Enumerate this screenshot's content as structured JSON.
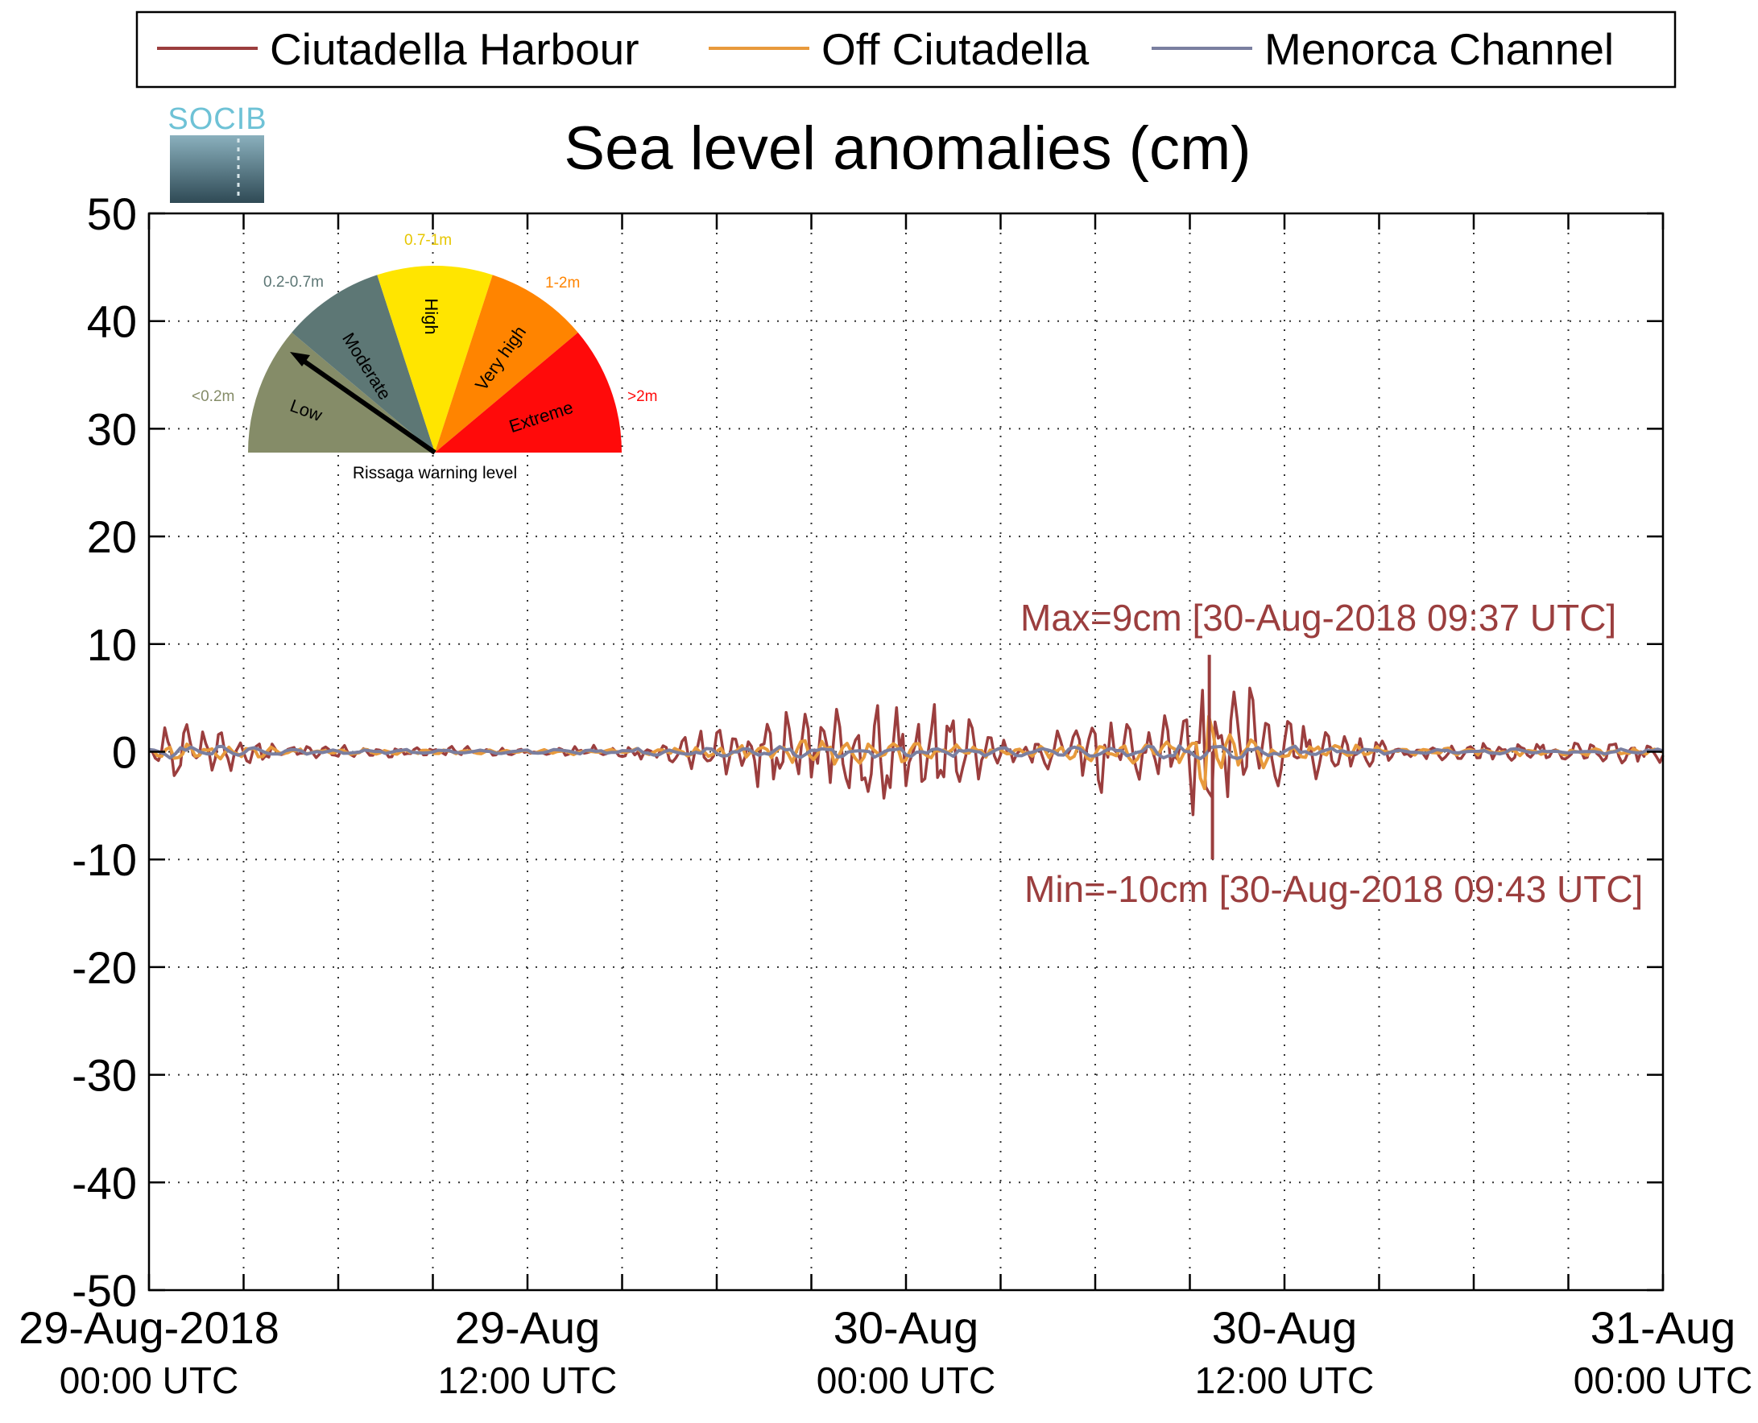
{
  "chart_data": {
    "type": "line",
    "title": "Sea level anomalies (cm)",
    "xlabel": "",
    "ylabel": "",
    "ylim": [
      -50,
      50
    ],
    "yticks": [
      50,
      40,
      30,
      20,
      10,
      0,
      -10,
      -20,
      -30,
      -40,
      -50
    ],
    "x_range": [
      "2018-08-29 00:00",
      "2018-08-31 00:00"
    ],
    "x_tick_labels": [
      {
        "x": "2018-08-29 00:00",
        "line1": "29-Aug-2018",
        "line2": "00:00 UTC"
      },
      {
        "x": "2018-08-29 12:00",
        "line1": "29-Aug",
        "line2": "12:00 UTC"
      },
      {
        "x": "2018-08-30 00:00",
        "line1": "30-Aug",
        "line2": "00:00 UTC"
      },
      {
        "x": "2018-08-30 12:00",
        "line1": "30-Aug",
        "line2": "12:00 UTC"
      },
      {
        "x": "2018-08-31 00:00",
        "line1": "31-Aug",
        "line2": "00:00 UTC"
      }
    ],
    "x_minor_ticks": [
      "2018-08-29 03:00",
      "2018-08-29 06:00",
      "2018-08-29 09:00",
      "2018-08-29 15:00",
      "2018-08-29 18:00",
      "2018-08-29 21:00",
      "2018-08-30 03:00",
      "2018-08-30 06:00",
      "2018-08-30 09:00",
      "2018-08-30 15:00",
      "2018-08-30 18:00",
      "2018-08-30 21:00"
    ],
    "grid": true,
    "legend_position": "top",
    "series": [
      {
        "name": "Ciutadella Harbour",
        "color": "#9b3e3e",
        "envelope": [
          [
            "2018-08-29 00:00",
            0.5
          ],
          [
            "2018-08-29 00:30",
            4
          ],
          [
            "2018-08-29 01:00",
            3.5
          ],
          [
            "2018-08-29 02:00",
            2.5
          ],
          [
            "2018-08-29 04:00",
            0.8
          ],
          [
            "2018-08-29 06:00",
            0.6
          ],
          [
            "2018-08-29 08:00",
            0.6
          ],
          [
            "2018-08-29 12:00",
            0.4
          ],
          [
            "2018-08-29 16:00",
            0.8
          ],
          [
            "2018-08-29 18:00",
            2.5
          ],
          [
            "2018-08-29 19:00",
            3
          ],
          [
            "2018-08-29 21:00",
            6
          ],
          [
            "2018-08-29 23:00",
            5
          ],
          [
            "2018-08-30 01:00",
            5
          ],
          [
            "2018-08-30 03:00",
            1.5
          ],
          [
            "2018-08-30 04:00",
            1.5
          ],
          [
            "2018-08-30 06:00",
            4
          ],
          [
            "2018-08-30 07:00",
            4
          ],
          [
            "2018-08-30 08:00",
            3
          ],
          [
            "2018-08-30 09:30",
            7
          ],
          [
            "2018-08-30 10:00",
            6
          ],
          [
            "2018-08-30 11:00",
            8.5
          ],
          [
            "2018-08-30 12:00",
            5
          ],
          [
            "2018-08-30 13:30",
            2
          ],
          [
            "2018-08-30 16:00",
            1
          ],
          [
            "2018-08-30 20:00",
            0.9
          ],
          [
            "2018-08-31 00:00",
            1.2
          ]
        ]
      },
      {
        "name": "Off Ciutadella",
        "color": "#e89a3c",
        "envelope": [
          [
            "2018-08-29 00:00",
            0.3
          ],
          [
            "2018-08-29 01:00",
            1.2
          ],
          [
            "2018-08-29 04:00",
            0.4
          ],
          [
            "2018-08-29 12:00",
            0.2
          ],
          [
            "2018-08-29 18:00",
            0.5
          ],
          [
            "2018-08-29 21:00",
            1.3
          ],
          [
            "2018-08-30 00:00",
            1.2
          ],
          [
            "2018-08-30 03:00",
            0.4
          ],
          [
            "2018-08-30 06:00",
            1
          ],
          [
            "2018-08-30 09:00",
            1.2
          ],
          [
            "2018-08-30 09:40",
            5
          ],
          [
            "2018-08-30 10:00",
            1.5
          ],
          [
            "2018-08-30 11:00",
            2
          ],
          [
            "2018-08-30 12:00",
            1
          ],
          [
            "2018-08-30 16:00",
            0.4
          ],
          [
            "2018-08-31 00:00",
            0.4
          ]
        ]
      },
      {
        "name": "Menorca Channel",
        "color": "#7a7fa0",
        "envelope": [
          [
            "2018-08-29 00:00",
            0.3
          ],
          [
            "2018-08-29 01:00",
            0.8
          ],
          [
            "2018-08-29 04:00",
            0.3
          ],
          [
            "2018-08-29 12:00",
            0.2
          ],
          [
            "2018-08-29 21:00",
            0.6
          ],
          [
            "2018-08-30 00:00",
            0.6
          ],
          [
            "2018-08-30 06:00",
            0.5
          ],
          [
            "2018-08-30 09:00",
            0.7
          ],
          [
            "2018-08-30 11:00",
            0.7
          ],
          [
            "2018-08-30 16:00",
            0.3
          ],
          [
            "2018-08-31 00:00",
            0.3
          ]
        ]
      }
    ],
    "annotations": [
      {
        "text": "Max=9cm [30-Aug-2018 09:37 UTC]",
        "x": "2018-08-30 09:37",
        "y": 9
      },
      {
        "text": "Min=-10cm [30-Aug-2018 09:43 UTC]",
        "x": "2018-08-30 09:43",
        "y": -10
      }
    ]
  },
  "logo": {
    "text": "SOCIB"
  },
  "gauge": {
    "caption": "Rissaga warning level",
    "level": "Low",
    "segments": [
      {
        "label": "Low",
        "range": "<0.2m",
        "color": "#858c68"
      },
      {
        "label": "Moderate",
        "range": "0.2-0.7m",
        "color": "#5d7775"
      },
      {
        "label": "High",
        "range": "0.7-1m",
        "color": "#ffe500"
      },
      {
        "label": "Very high",
        "range": "1-2m",
        "color": "#ff8400"
      },
      {
        "label": "Extreme",
        "range": ">2m",
        "color": "#ff0a0a"
      }
    ]
  }
}
